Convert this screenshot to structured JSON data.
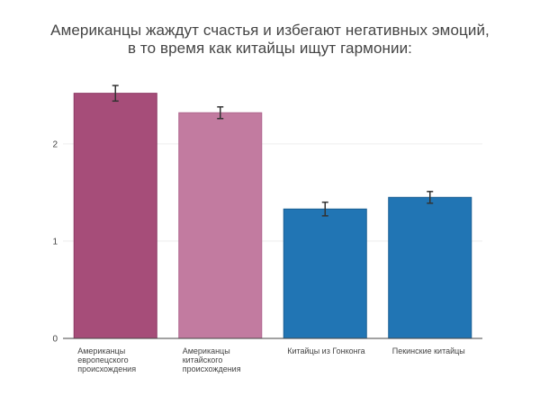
{
  "title": {
    "line1": "Американцы жаждут счастья и избегают негативных эмоций,",
    "line2": "в то время как китайцы ищут гармонии:"
  },
  "chart_data": {
    "type": "bar",
    "title": "Американцы жаждут счастья и избегают негативных эмоций, в то время как китайцы ищут гармонии:",
    "xlabel": "",
    "ylabel": "",
    "ylim": [
      0,
      2.6
    ],
    "yticks": [
      0,
      1,
      2
    ],
    "grid": true,
    "categories": [
      [
        "Американцы",
        "европецского",
        "происхождения"
      ],
      [
        "Американцы",
        "китайского",
        "происхождения"
      ],
      [
        "Китайцы из Гонконга"
      ],
      [
        "Пекинские китайцы"
      ]
    ],
    "values": [
      2.52,
      2.32,
      1.33,
      1.45
    ],
    "errors": [
      0.08,
      0.06,
      0.07,
      0.06
    ],
    "colors": [
      "#a64d79",
      "#c27ba0",
      "#2175b4",
      "#2175b4"
    ],
    "border_colors": [
      "#8e3a65",
      "#b0688f",
      "#1a5f93",
      "#1a5f93"
    ]
  }
}
